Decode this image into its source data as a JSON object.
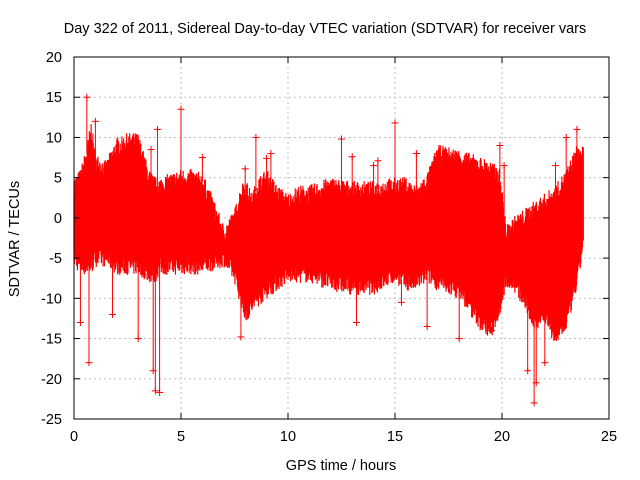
{
  "chart_data": {
    "type": "scatter",
    "title": "Day 322 of 2011, Sidereal Day-to-day VTEC variation (SDTVAR) for receiver vars",
    "xlabel": "GPS time / hours",
    "ylabel": "SDTVAR / TECUs",
    "xlim": [
      0,
      25
    ],
    "ylim": [
      -25,
      20
    ],
    "xticks": [
      0,
      5,
      10,
      15,
      20,
      25
    ],
    "yticks": [
      -25,
      -20,
      -15,
      -10,
      -5,
      0,
      5,
      10,
      15,
      20
    ],
    "xtick_labels": [
      "0",
      "5",
      "10",
      "15",
      "20",
      "25"
    ],
    "ytick_labels": [
      "-25",
      "-20",
      "-15",
      "-10",
      "-5",
      "0",
      "5",
      "10",
      "15",
      "20"
    ],
    "grid": true,
    "marker": "plus",
    "series": [
      {
        "name": "SDTVAR",
        "color": "#ff0000",
        "envelope": {
          "x": [
            0.0,
            0.3,
            0.6,
            0.8,
            1.0,
            1.5,
            2.0,
            2.2,
            2.5,
            3.0,
            3.5,
            3.8,
            4.0,
            4.5,
            5.0,
            5.5,
            6.0,
            6.5,
            7.0,
            7.5,
            7.8,
            8.0,
            8.3,
            8.6,
            9.0,
            9.5,
            10.0,
            10.5,
            11.0,
            12.0,
            13.0,
            14.0,
            15.0,
            15.5,
            16.0,
            16.5,
            17.0,
            18.0,
            19.0,
            19.5,
            19.9,
            20.2,
            20.5,
            21.0,
            21.5,
            22.0,
            22.5,
            23.0,
            23.5,
            23.8
          ],
          "upper": [
            4,
            5,
            8,
            11,
            7,
            6,
            9,
            9,
            9.5,
            9.5,
            5,
            4,
            4,
            4.5,
            5,
            5,
            4.5,
            1.5,
            -2,
            0,
            3,
            4,
            2,
            4,
            5,
            3,
            2,
            3,
            3,
            4,
            3.5,
            3.5,
            4,
            4,
            3,
            4.5,
            8,
            7.5,
            6.5,
            6,
            5,
            -2,
            -1,
            0,
            1,
            2,
            3,
            5,
            8,
            8
          ],
          "lower": [
            -5,
            -6,
            -6,
            -6,
            -5,
            -5,
            -6,
            -6,
            -6,
            -6,
            -7,
            -7,
            -6,
            -6,
            -6,
            -6,
            -6,
            -5.5,
            -5,
            -7,
            -10,
            -12,
            -11,
            -10,
            -9,
            -8,
            -7,
            -7,
            -7,
            -8,
            -8.5,
            -8.5,
            -7,
            -8,
            -8,
            -7,
            -8,
            -9,
            -13,
            -14,
            -11,
            -7.5,
            -8,
            -10,
            -13,
            -12,
            -15,
            -13,
            -8,
            -3
          ]
        },
        "outliers": {
          "x": [
            0.3,
            0.6,
            0.7,
            1.0,
            1.8,
            3.0,
            3.6,
            3.7,
            3.8,
            3.9,
            4.0,
            5.0,
            6.0,
            7.8,
            8.0,
            8.5,
            9.0,
            9.2,
            12.5,
            13.0,
            13.2,
            14.0,
            14.2,
            15.0,
            15.3,
            16.0,
            16.5,
            17.0,
            18.0,
            19.5,
            19.9,
            20.1,
            21.2,
            21.5,
            21.6,
            22.0,
            22.5,
            23.0,
            23.5
          ],
          "y": [
            -13,
            15,
            -18,
            12,
            -12,
            -15,
            8.5,
            -19,
            -21.5,
            11,
            -21.7,
            13.5,
            7.5,
            -14.8,
            6.1,
            10,
            7.4,
            8,
            9.8,
            7.6,
            -13,
            6.5,
            7.1,
            11.8,
            -10.5,
            8,
            -13.5,
            8,
            -15,
            -14,
            9,
            6.5,
            -19,
            -23,
            -20.5,
            -18,
            6.5,
            10,
            11
          ]
        }
      }
    ]
  }
}
